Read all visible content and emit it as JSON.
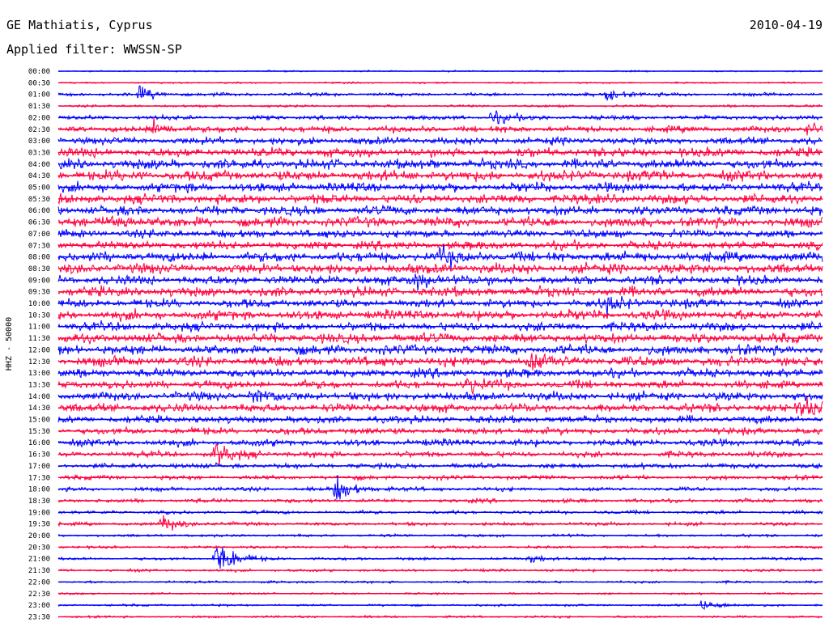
{
  "header": {
    "station": "GE Mathiatis, Cyprus",
    "date": "2010-04-19",
    "filter": "Applied filter: WWSSN-SP"
  },
  "chart_data": {
    "type": "line",
    "title": "GE Mathiatis, Cyprus",
    "ylabel": "HHZ - 50000",
    "colors": [
      "#0000ff",
      "#ff0040"
    ],
    "rows": [
      "00:00",
      "00:30",
      "01:00",
      "01:30",
      "02:00",
      "02:30",
      "03:00",
      "03:30",
      "04:00",
      "04:30",
      "05:00",
      "05:30",
      "06:00",
      "06:30",
      "07:00",
      "07:30",
      "08:00",
      "08:30",
      "09:00",
      "09:30",
      "10:00",
      "10:30",
      "11:00",
      "11:30",
      "12:00",
      "12:30",
      "13:00",
      "13:30",
      "14:00",
      "14:30",
      "15:00",
      "15:30",
      "16:00",
      "16:30",
      "17:00",
      "17:30",
      "18:00",
      "18:30",
      "19:00",
      "19:30",
      "20:00",
      "20:30",
      "21:00",
      "21:30",
      "22:00",
      "22:30",
      "23:00",
      "23:30"
    ],
    "noise_level": [
      0.5,
      0.6,
      1.2,
      0.9,
      1.6,
      2.2,
      2.6,
      3.2,
      3.4,
      3.6,
      3.2,
      3.4,
      3.2,
      3.4,
      2.8,
      3.0,
      3.4,
      3.6,
      3.2,
      3.4,
      3.0,
      3.4,
      3.0,
      3.4,
      3.4,
      3.4,
      3.0,
      2.8,
      3.0,
      3.0,
      2.6,
      2.4,
      2.4,
      2.0,
      1.8,
      1.6,
      1.4,
      1.4,
      1.2,
      1.2,
      1.0,
      0.9,
      1.0,
      1.0,
      0.8,
      0.7,
      0.8,
      0.8
    ],
    "events": [
      {
        "row": "01:00",
        "time_min": 3.2,
        "amplitude": 6
      },
      {
        "row": "01:00",
        "time_min": 21.5,
        "amplitude": 5
      },
      {
        "row": "02:00",
        "time_min": 17.0,
        "amplitude": 6
      },
      {
        "row": "02:30",
        "time_min": 3.7,
        "amplitude": 7
      },
      {
        "row": "02:30",
        "time_min": 29.4,
        "amplitude": 6
      },
      {
        "row": "06:30",
        "time_min": 2.1,
        "amplitude": 7
      },
      {
        "row": "08:00",
        "time_min": 15.0,
        "amplitude": 7
      },
      {
        "row": "09:00",
        "time_min": 14.0,
        "amplitude": 7
      },
      {
        "row": "10:00",
        "time_min": 21.5,
        "amplitude": 7
      },
      {
        "row": "12:30",
        "time_min": 18.5,
        "amplitude": 8
      },
      {
        "row": "13:30",
        "time_min": 16.0,
        "amplitude": 7
      },
      {
        "row": "14:00",
        "time_min": 7.6,
        "amplitude": 7
      },
      {
        "row": "14:30",
        "time_min": 29.2,
        "amplitude": 8
      },
      {
        "row": "16:30",
        "time_min": 6.2,
        "amplitude": 10
      },
      {
        "row": "18:00",
        "time_min": 10.9,
        "amplitude": 12
      },
      {
        "row": "19:30",
        "time_min": 4.1,
        "amplitude": 8
      },
      {
        "row": "21:00",
        "time_min": 6.2,
        "amplitude": 18
      },
      {
        "row": "21:00",
        "time_min": 18.5,
        "amplitude": 4
      },
      {
        "row": "23:00",
        "time_min": 25.3,
        "amplitude": 5
      }
    ],
    "x_range_min": [
      0,
      30
    ],
    "grid": false
  }
}
